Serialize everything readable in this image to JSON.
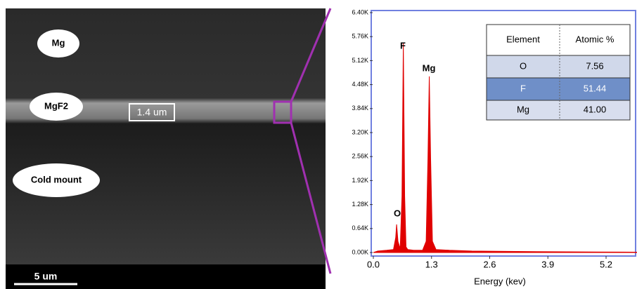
{
  "sem": {
    "labels": [
      "Mg",
      "MgF2",
      "Cold mount"
    ],
    "thickness": "1.4 um",
    "scale_bar": "5 um"
  },
  "chart_data": {
    "type": "area",
    "x_label": "Energy (kev)",
    "x": [
      0,
      0.1,
      0.3,
      0.45,
      0.5,
      0.52,
      0.55,
      0.6,
      0.64,
      0.67,
      0.7,
      0.73,
      0.77,
      0.9,
      1.1,
      1.18,
      1.22,
      1.25,
      1.28,
      1.32,
      1.4,
      1.7,
      2.2,
      3.0,
      4.0,
      5.0,
      5.9
    ],
    "series": [
      {
        "color": "#e00000",
        "values": [
          0,
          40,
          60,
          80,
          400,
          750,
          300,
          100,
          1500,
          5600,
          1500,
          150,
          80,
          60,
          60,
          300,
          2500,
          4700,
          2500,
          300,
          80,
          60,
          40,
          30,
          20,
          15,
          10
        ]
      }
    ],
    "peak_labels": [
      "O",
      "F",
      "Mg"
    ],
    "xlim": [
      0,
      5.9
    ],
    "xticks": [
      {
        "value": 0,
        "label": "0.0"
      },
      1.3,
      2.6,
      3.9,
      5.2
    ],
    "ylim": [
      0,
      6400
    ],
    "yticks": [
      {
        "value": 0,
        "label": "0.00K"
      },
      {
        "value": 640,
        "label": "0.64K"
      },
      {
        "value": 1280,
        "label": "1.28K"
      },
      {
        "value": 1920,
        "label": "1.92K"
      },
      {
        "value": 2560,
        "label": "2.56K"
      },
      {
        "value": 3200,
        "label": "3.20K"
      },
      {
        "value": 3840,
        "label": "3.84K"
      },
      {
        "value": 4480,
        "label": "4.48K"
      },
      {
        "value": 5120,
        "label": "5.12K"
      },
      {
        "value": 5760,
        "label": "5.76K"
      },
      {
        "value": 6400,
        "label": "6.40K"
      }
    ]
  },
  "table": {
    "header": [
      "Element",
      "Atomic %"
    ],
    "rows": [
      [
        "O",
        "7.56"
      ],
      [
        "F",
        "51.44"
      ],
      [
        "Mg",
        "41.00"
      ]
    ]
  }
}
